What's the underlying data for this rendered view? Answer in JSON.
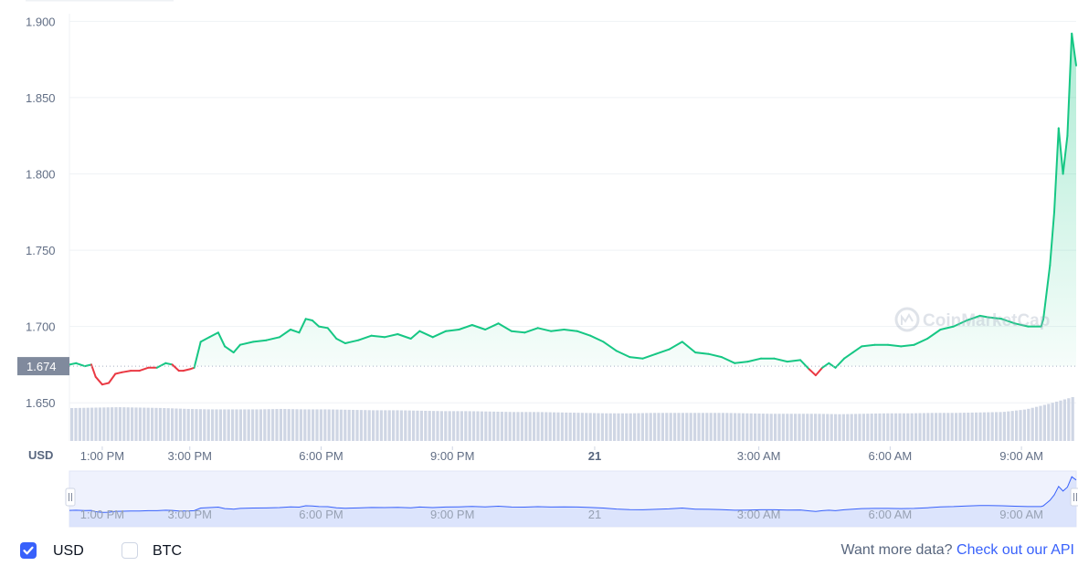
{
  "chart_data": {
    "type": "line",
    "currency_label": "USD",
    "y_ticks": [
      "1.900",
      "1.850",
      "1.800",
      "1.750",
      "1.700",
      "1.650"
    ],
    "ylim": [
      1.625,
      1.905
    ],
    "x_ticks": [
      "1:00 PM",
      "3:00 PM",
      "6:00 PM",
      "9:00 PM",
      "21",
      "3:00 AM",
      "6:00 AM",
      "9:00 AM"
    ],
    "xlim_hours": [
      12.0,
      35.0
    ],
    "x_tick_hours": [
      12.75,
      14.75,
      17.75,
      20.75,
      24.0,
      27.75,
      30.75,
      33.75
    ],
    "bold_tick": "21",
    "reference_value": 1.674,
    "reference_label": "1.674",
    "watermark": "CoinMarketCap",
    "grid": true,
    "colors": {
      "up": "#16c784",
      "down": "#ea3943",
      "nav_line": "#3861fb",
      "volume": "#cfd6e4"
    },
    "series": [
      {
        "x_hours": [
          12.0,
          12.15,
          12.35,
          12.5,
          12.6,
          12.75,
          12.9,
          13.05,
          13.2,
          13.4,
          13.6,
          13.8,
          14.0,
          14.2,
          14.35,
          14.5,
          14.6,
          14.75,
          14.85,
          15.0,
          15.2,
          15.4,
          15.55,
          15.75,
          15.9,
          16.2,
          16.5,
          16.8,
          17.05,
          17.25,
          17.4,
          17.55,
          17.7,
          17.9,
          18.1,
          18.3,
          18.6,
          18.9,
          19.2,
          19.5,
          19.8,
          20.0,
          20.3,
          20.6,
          20.9,
          21.2,
          21.5,
          21.8,
          22.1,
          22.4,
          22.7,
          23.0,
          23.3,
          23.6,
          23.9,
          24.2,
          24.5,
          24.8,
          25.1,
          25.4,
          25.7,
          26.0,
          26.3,
          26.6,
          26.9,
          27.2,
          27.5,
          27.8,
          28.1,
          28.4,
          28.7,
          28.9,
          29.05,
          29.2,
          29.35,
          29.5,
          29.7,
          29.9,
          30.1,
          30.4,
          30.7,
          31.0,
          31.3,
          31.6,
          31.9,
          32.2,
          32.5,
          32.8,
          33.0,
          33.3,
          33.6,
          33.9,
          34.2,
          34.25,
          34.4,
          34.5,
          34.6,
          34.7,
          34.8,
          34.9,
          35.0
        ],
        "y": [
          1.675,
          1.676,
          1.674,
          1.675,
          1.667,
          1.662,
          1.663,
          1.669,
          1.67,
          1.671,
          1.671,
          1.673,
          1.673,
          1.676,
          1.675,
          1.671,
          1.671,
          1.672,
          1.673,
          1.69,
          1.693,
          1.696,
          1.687,
          1.683,
          1.688,
          1.69,
          1.691,
          1.693,
          1.698,
          1.696,
          1.705,
          1.704,
          1.7,
          1.699,
          1.692,
          1.689,
          1.691,
          1.694,
          1.693,
          1.695,
          1.692,
          1.697,
          1.693,
          1.697,
          1.698,
          1.701,
          1.698,
          1.702,
          1.697,
          1.696,
          1.699,
          1.697,
          1.698,
          1.697,
          1.694,
          1.69,
          1.684,
          1.68,
          1.679,
          1.682,
          1.685,
          1.69,
          1.683,
          1.682,
          1.68,
          1.676,
          1.677,
          1.679,
          1.679,
          1.677,
          1.678,
          1.672,
          1.668,
          1.673,
          1.676,
          1.673,
          1.679,
          1.683,
          1.687,
          1.688,
          1.688,
          1.687,
          1.688,
          1.692,
          1.698,
          1.7,
          1.704,
          1.707,
          1.706,
          1.705,
          1.702,
          1.7,
          1.7,
          1.705,
          1.74,
          1.775,
          1.83,
          1.8,
          1.825,
          1.892,
          1.871
        ]
      }
    ],
    "volume_rel": [
      0.75,
      0.76,
      0.77,
      0.76,
      0.75,
      0.73,
      0.72,
      0.72,
      0.72,
      0.73,
      0.72,
      0.72,
      0.71,
      0.7,
      0.7,
      0.69,
      0.68,
      0.68,
      0.67,
      0.66,
      0.66,
      0.65,
      0.64,
      0.63,
      0.63,
      0.64,
      0.64,
      0.64,
      0.64,
      0.63,
      0.62,
      0.62,
      0.62,
      0.61,
      0.62,
      0.63,
      0.63,
      0.64,
      0.64,
      0.65,
      0.66,
      0.72,
      0.85,
      1.0
    ]
  },
  "footer": {
    "usd_label": "USD",
    "btc_label": "BTC",
    "api_prompt": "Want more data?",
    "api_link": "Check out our API"
  }
}
